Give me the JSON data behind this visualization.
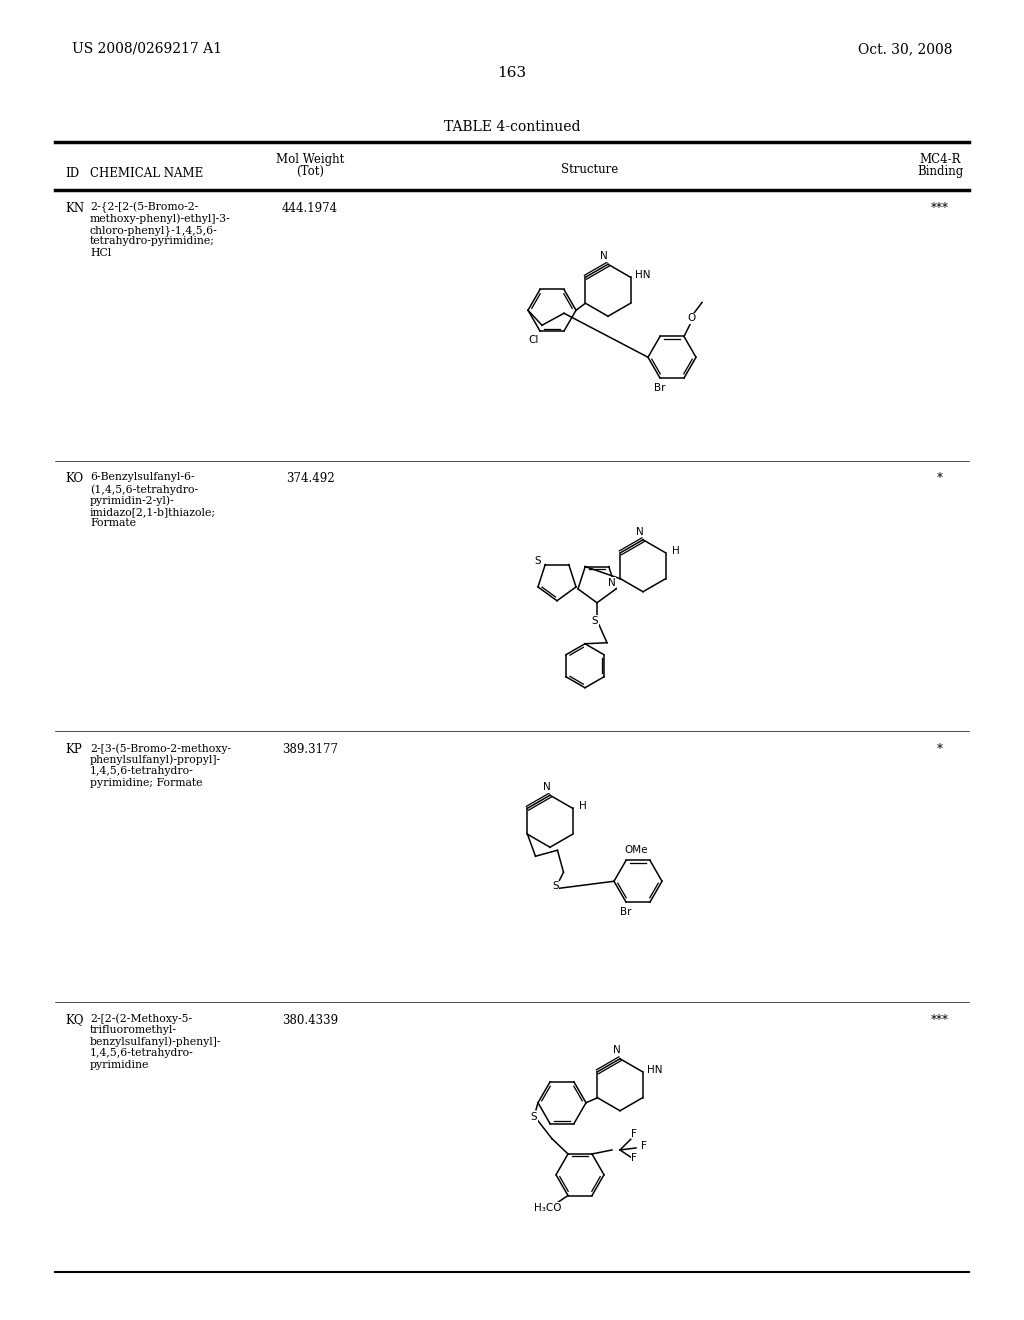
{
  "background_color": "#ffffff",
  "page_number": "163",
  "top_left_text": "US 2008/0269217 A1",
  "top_right_text": "Oct. 30, 2008",
  "table_title": "TABLE 4-continued",
  "rows": [
    {
      "id": "KN",
      "name": "2-{2-[2-(5-Bromo-2-\nmethoxy-phenyl)-ethyl]-3-\nchloro-phenyl}-1,4,5,6-\ntetrahydro-pyrimidine;\nHCl",
      "mol_weight": "444.1974",
      "binding": "***"
    },
    {
      "id": "KO",
      "name": "6-Benzylsulfanyl-6-\n(1,4,5,6-tetrahydro-\npyrimidin-2-yl)-\nimidazo[2,1-b]thiazole;\nFormate",
      "mol_weight": "374.492",
      "binding": "*"
    },
    {
      "id": "KP",
      "name": "2-[3-(5-Bromo-2-methoxy-\nphenylsulfanyl)-propyl]-\n1,4,5,6-tetrahydro-\npyrimidine; Formate",
      "mol_weight": "389.3177",
      "binding": "*"
    },
    {
      "id": "KQ",
      "name": "2-[2-(2-Methoxy-5-\ntrifluoromethyl-\nbenzylsulfanyl)-phenyl]-\n1,4,5,6-tetrahydro-\npyrimidine",
      "mol_weight": "380.4339",
      "binding": "***"
    }
  ],
  "text_color": "#000000"
}
